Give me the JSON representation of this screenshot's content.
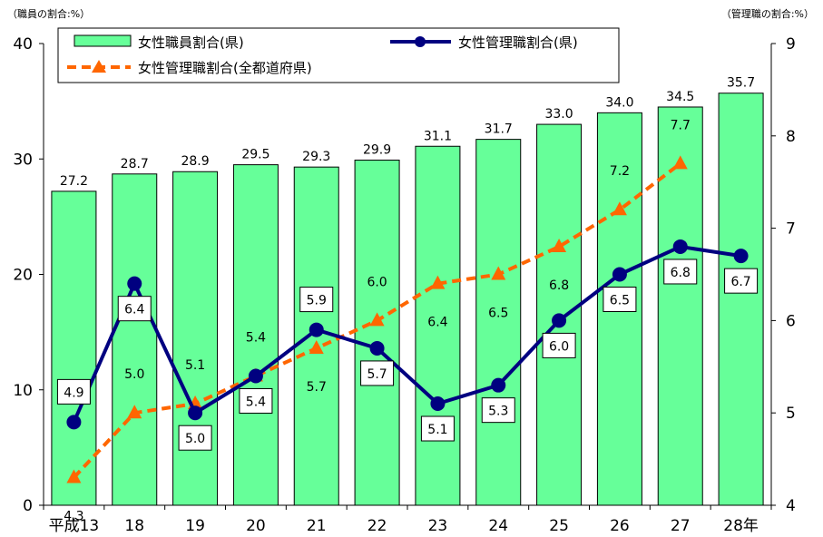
{
  "chart_data": {
    "type": "bar",
    "categories": [
      "平成13",
      "18",
      "19",
      "20",
      "21",
      "22",
      "23",
      "24",
      "25",
      "26",
      "27",
      "28年"
    ],
    "left_axis": {
      "unit_label": "（職員の割合:%）",
      "range": [
        0,
        40
      ],
      "ticks": [
        "0",
        "10",
        "20",
        "30",
        "40"
      ]
    },
    "right_axis": {
      "unit_label": "（管理職の割合:%）",
      "range": [
        4,
        9
      ],
      "ticks": [
        "4",
        "5",
        "6",
        "7",
        "8",
        "9"
      ]
    },
    "grid": false,
    "legend_position": "top",
    "series": [
      {
        "name": "女性職員割合(県)",
        "type": "bar",
        "axis": "left",
        "color": "#66ff99",
        "values": [
          27.2,
          28.7,
          28.9,
          29.5,
          29.3,
          29.9,
          31.1,
          31.7,
          33.0,
          34.0,
          34.5,
          35.7
        ],
        "labels": [
          "27.2",
          "28.7",
          "28.9",
          "29.5",
          "29.3",
          "29.9",
          "31.1",
          "31.7",
          "33.0",
          "34.0",
          "34.5",
          "35.7"
        ]
      },
      {
        "name": "女性管理職割合(県)",
        "type": "line",
        "axis": "right",
        "color": "#000080",
        "marker": "circle",
        "values": [
          4.9,
          6.4,
          5.0,
          5.4,
          5.9,
          5.7,
          5.1,
          5.3,
          6.0,
          6.5,
          6.8,
          6.7
        ],
        "labels": [
          "4.9",
          "6.4",
          "5.0",
          "5.4",
          "5.9",
          "5.7",
          "5.1",
          "5.3",
          "6.0",
          "6.5",
          "6.8",
          "6.7"
        ]
      },
      {
        "name": "女性管理職割合(全都道府県)",
        "type": "line",
        "axis": "right",
        "color": "#ff6600",
        "marker": "triangle",
        "dashed": true,
        "values": [
          4.3,
          5.0,
          5.1,
          5.4,
          5.7,
          6.0,
          6.4,
          6.5,
          6.8,
          7.2,
          7.7,
          null
        ],
        "labels": [
          "4.3",
          "5.0",
          "5.1",
          "5.4",
          "5.7",
          "6.0",
          "6.4",
          "6.5",
          "6.8",
          "7.2",
          "7.7",
          ""
        ]
      }
    ]
  }
}
